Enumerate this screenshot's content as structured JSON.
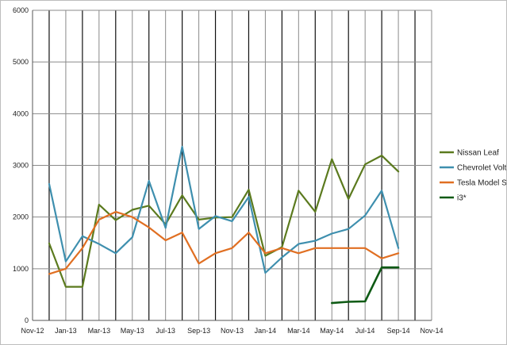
{
  "chart_data": {
    "type": "line",
    "title": "",
    "xlabel": "",
    "ylabel": "",
    "ylim": [
      0,
      6000
    ],
    "yticks": [
      0,
      1000,
      2000,
      3000,
      4000,
      5000,
      6000
    ],
    "grid": true,
    "legend_position": "right",
    "x_tick_labels": [
      "Nov-12",
      "Jan-13",
      "Mar-13",
      "May-13",
      "Jul-13",
      "Sep-13",
      "Nov-13",
      "Jan-14",
      "Mar-14",
      "May-14",
      "Jul-14",
      "Sep-14",
      "Nov-14"
    ],
    "months": [
      "Nov-12",
      "Dec-12",
      "Jan-13",
      "Feb-13",
      "Mar-13",
      "Apr-13",
      "May-13",
      "Jun-13",
      "Jul-13",
      "Aug-13",
      "Sep-13",
      "Oct-13",
      "Nov-13",
      "Dec-13",
      "Jan-14",
      "Feb-14",
      "Mar-14",
      "Apr-14",
      "May-14",
      "Jun-14",
      "Jul-14",
      "Aug-14",
      "Sep-14",
      "Oct-14",
      "Nov-14"
    ],
    "series": [
      {
        "name": "Nissan Leaf",
        "color": "#5b7a1e",
        "x": [
          "Dec-12",
          "Jan-13",
          "Feb-13",
          "Mar-13",
          "Apr-13",
          "May-13",
          "Jun-13",
          "Jul-13",
          "Aug-13",
          "Sep-13",
          "Oct-13",
          "Nov-13",
          "Dec-13",
          "Jan-14",
          "Feb-14",
          "Mar-14",
          "Apr-14",
          "May-14",
          "Jun-14",
          "Jul-14",
          "Aug-14",
          "Sep-14"
        ],
        "values": [
          1490,
          650,
          650,
          2240,
          1940,
          2140,
          2220,
          1860,
          2420,
          1950,
          1990,
          2000,
          2530,
          1250,
          1420,
          2510,
          2100,
          3120,
          2350,
          3020,
          3190,
          2880
        ]
      },
      {
        "name": "Chevrolet Volt",
        "color": "#3e8fae",
        "x": [
          "Dec-12",
          "Jan-13",
          "Feb-13",
          "Mar-13",
          "Apr-13",
          "May-13",
          "Jun-13",
          "Jul-13",
          "Aug-13",
          "Sep-13",
          "Oct-13",
          "Nov-13",
          "Dec-13",
          "Jan-14",
          "Feb-14",
          "Mar-14",
          "Apr-14",
          "May-14",
          "Jun-14",
          "Jul-14",
          "Aug-14",
          "Sep-14"
        ],
        "values": [
          2640,
          1140,
          1630,
          1480,
          1300,
          1610,
          2700,
          1790,
          3360,
          1770,
          2020,
          1920,
          2390,
          920,
          1220,
          1480,
          1540,
          1680,
          1770,
          2030,
          2510,
          1400
        ]
      },
      {
        "name": "Tesla Model S*",
        "color": "#e06f22",
        "x": [
          "Dec-12",
          "Jan-13",
          "Feb-13",
          "Mar-13",
          "Apr-13",
          "May-13",
          "Jun-13",
          "Jul-13",
          "Aug-13",
          "Sep-13",
          "Oct-13",
          "Nov-13",
          "Dec-13",
          "Jan-14",
          "Feb-14",
          "Mar-14",
          "Apr-14",
          "May-14",
          "Jun-14",
          "Jul-14",
          "Aug-14",
          "Sep-14"
        ],
        "values": [
          900,
          1000,
          1400,
          1950,
          2100,
          2000,
          1800,
          1550,
          1700,
          1100,
          1300,
          1400,
          1700,
          1300,
          1400,
          1300,
          1400,
          1400,
          1400,
          1400,
          1200,
          1300
        ]
      },
      {
        "name": "i3*",
        "color": "#0e5a14",
        "x": [
          "May-14",
          "Jun-14",
          "Jul-14",
          "Aug-14",
          "Sep-14"
        ],
        "values": [
          336,
          360,
          368,
          1025,
          1025
        ]
      }
    ]
  }
}
